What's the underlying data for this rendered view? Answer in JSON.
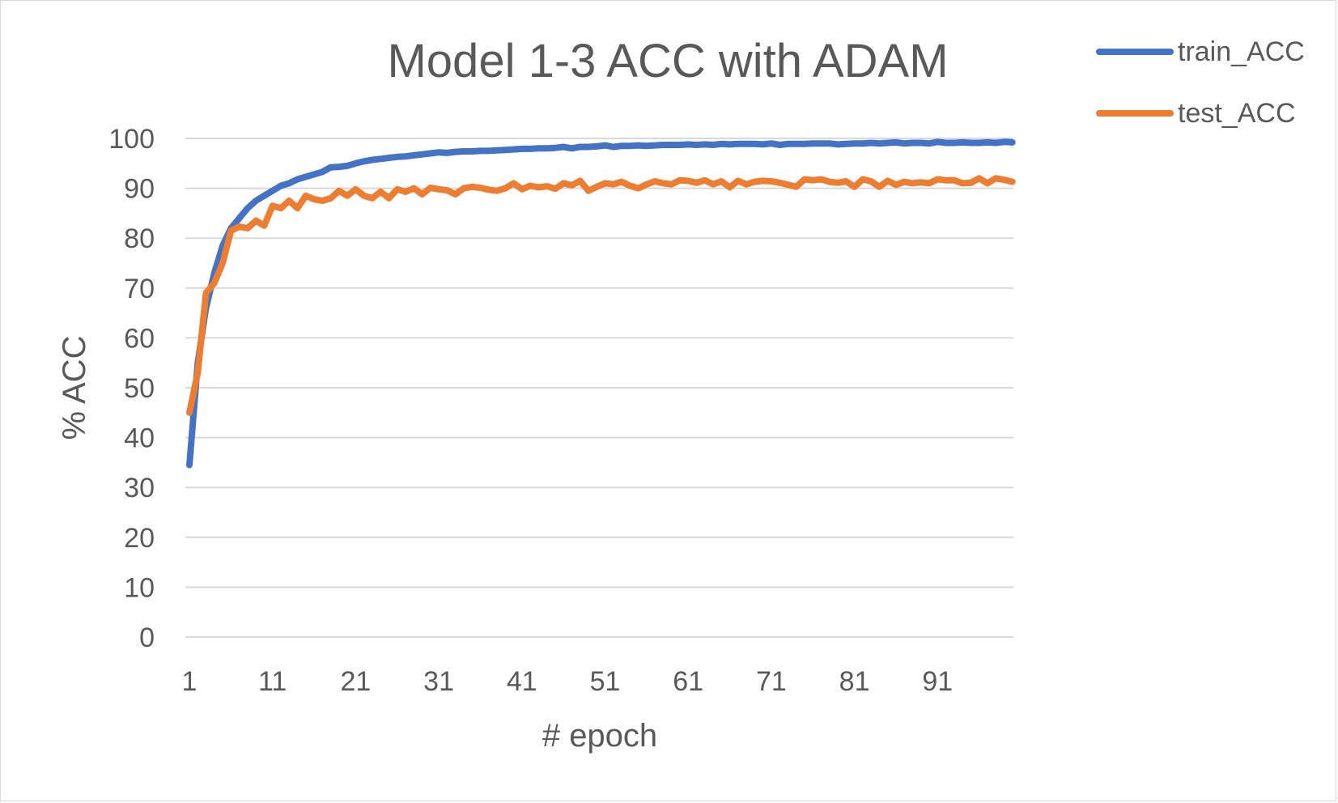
{
  "chart_data": {
    "type": "line",
    "title": "Model 1-3 ACC with ADAM",
    "xlabel": "# epoch",
    "ylabel": "% ACC",
    "ylim": [
      0,
      100
    ],
    "y_ticks": [
      0,
      10,
      20,
      30,
      40,
      50,
      60,
      70,
      80,
      90,
      100
    ],
    "x_ticks": [
      1,
      11,
      21,
      31,
      41,
      51,
      61,
      71,
      81,
      91
    ],
    "x_range": [
      1,
      100
    ],
    "grid": true,
    "legend_position": "top-right",
    "series": [
      {
        "name": "train_ACC",
        "color": "#4472C4",
        "values": [
          34.5,
          55.0,
          66.0,
          73.0,
          78.5,
          82.0,
          84.0,
          86.0,
          87.5,
          88.5,
          89.5,
          90.5,
          91.0,
          91.8,
          92.3,
          92.8,
          93.3,
          94.2,
          94.3,
          94.5,
          95.0,
          95.4,
          95.7,
          95.9,
          96.1,
          96.3,
          96.4,
          96.6,
          96.8,
          97.0,
          97.2,
          97.1,
          97.3,
          97.4,
          97.4,
          97.5,
          97.5,
          97.6,
          97.7,
          97.8,
          97.9,
          97.9,
          98.0,
          98.0,
          98.1,
          98.3,
          98.0,
          98.3,
          98.3,
          98.4,
          98.6,
          98.3,
          98.5,
          98.5,
          98.6,
          98.5,
          98.6,
          98.7,
          98.7,
          98.7,
          98.8,
          98.7,
          98.8,
          98.7,
          98.9,
          98.8,
          98.9,
          98.9,
          98.9,
          98.8,
          99.0,
          98.7,
          98.9,
          98.9,
          98.9,
          99.0,
          99.0,
          99.0,
          98.8,
          98.9,
          99.0,
          99.0,
          99.1,
          99.0,
          99.1,
          99.2,
          99.0,
          99.1,
          99.1,
          99.0,
          99.3,
          99.1,
          99.1,
          99.2,
          99.1,
          99.1,
          99.2,
          99.1,
          99.3,
          99.2
        ]
      },
      {
        "name": "test_ACC",
        "color": "#ED7D31",
        "values": [
          45.0,
          53.0,
          69.0,
          71.0,
          75.0,
          81.5,
          82.3,
          82.0,
          83.5,
          82.5,
          86.5,
          86.0,
          87.5,
          86.0,
          88.5,
          87.8,
          87.5,
          88.0,
          89.5,
          88.5,
          89.8,
          88.5,
          88.0,
          89.3,
          88.0,
          89.8,
          89.3,
          90.0,
          88.8,
          90.1,
          89.8,
          89.6,
          88.8,
          90.0,
          90.3,
          90.1,
          89.7,
          89.5,
          90.0,
          91.0,
          89.8,
          90.5,
          90.2,
          90.4,
          89.9,
          91.0,
          90.6,
          91.5,
          89.5,
          90.3,
          91.0,
          90.8,
          91.3,
          90.5,
          90.0,
          90.8,
          91.4,
          91.0,
          90.8,
          91.6,
          91.5,
          91.1,
          91.6,
          90.8,
          91.4,
          90.2,
          91.5,
          90.8,
          91.3,
          91.5,
          91.4,
          91.1,
          90.7,
          90.3,
          91.8,
          91.6,
          91.8,
          91.3,
          91.1,
          91.4,
          90.3,
          91.8,
          91.4,
          90.3,
          91.5,
          90.7,
          91.3,
          91.0,
          91.2,
          91.0,
          91.8,
          91.6,
          91.6,
          91.0,
          91.1,
          92.0,
          91.0,
          92.0,
          91.7,
          91.3
        ]
      }
    ]
  }
}
